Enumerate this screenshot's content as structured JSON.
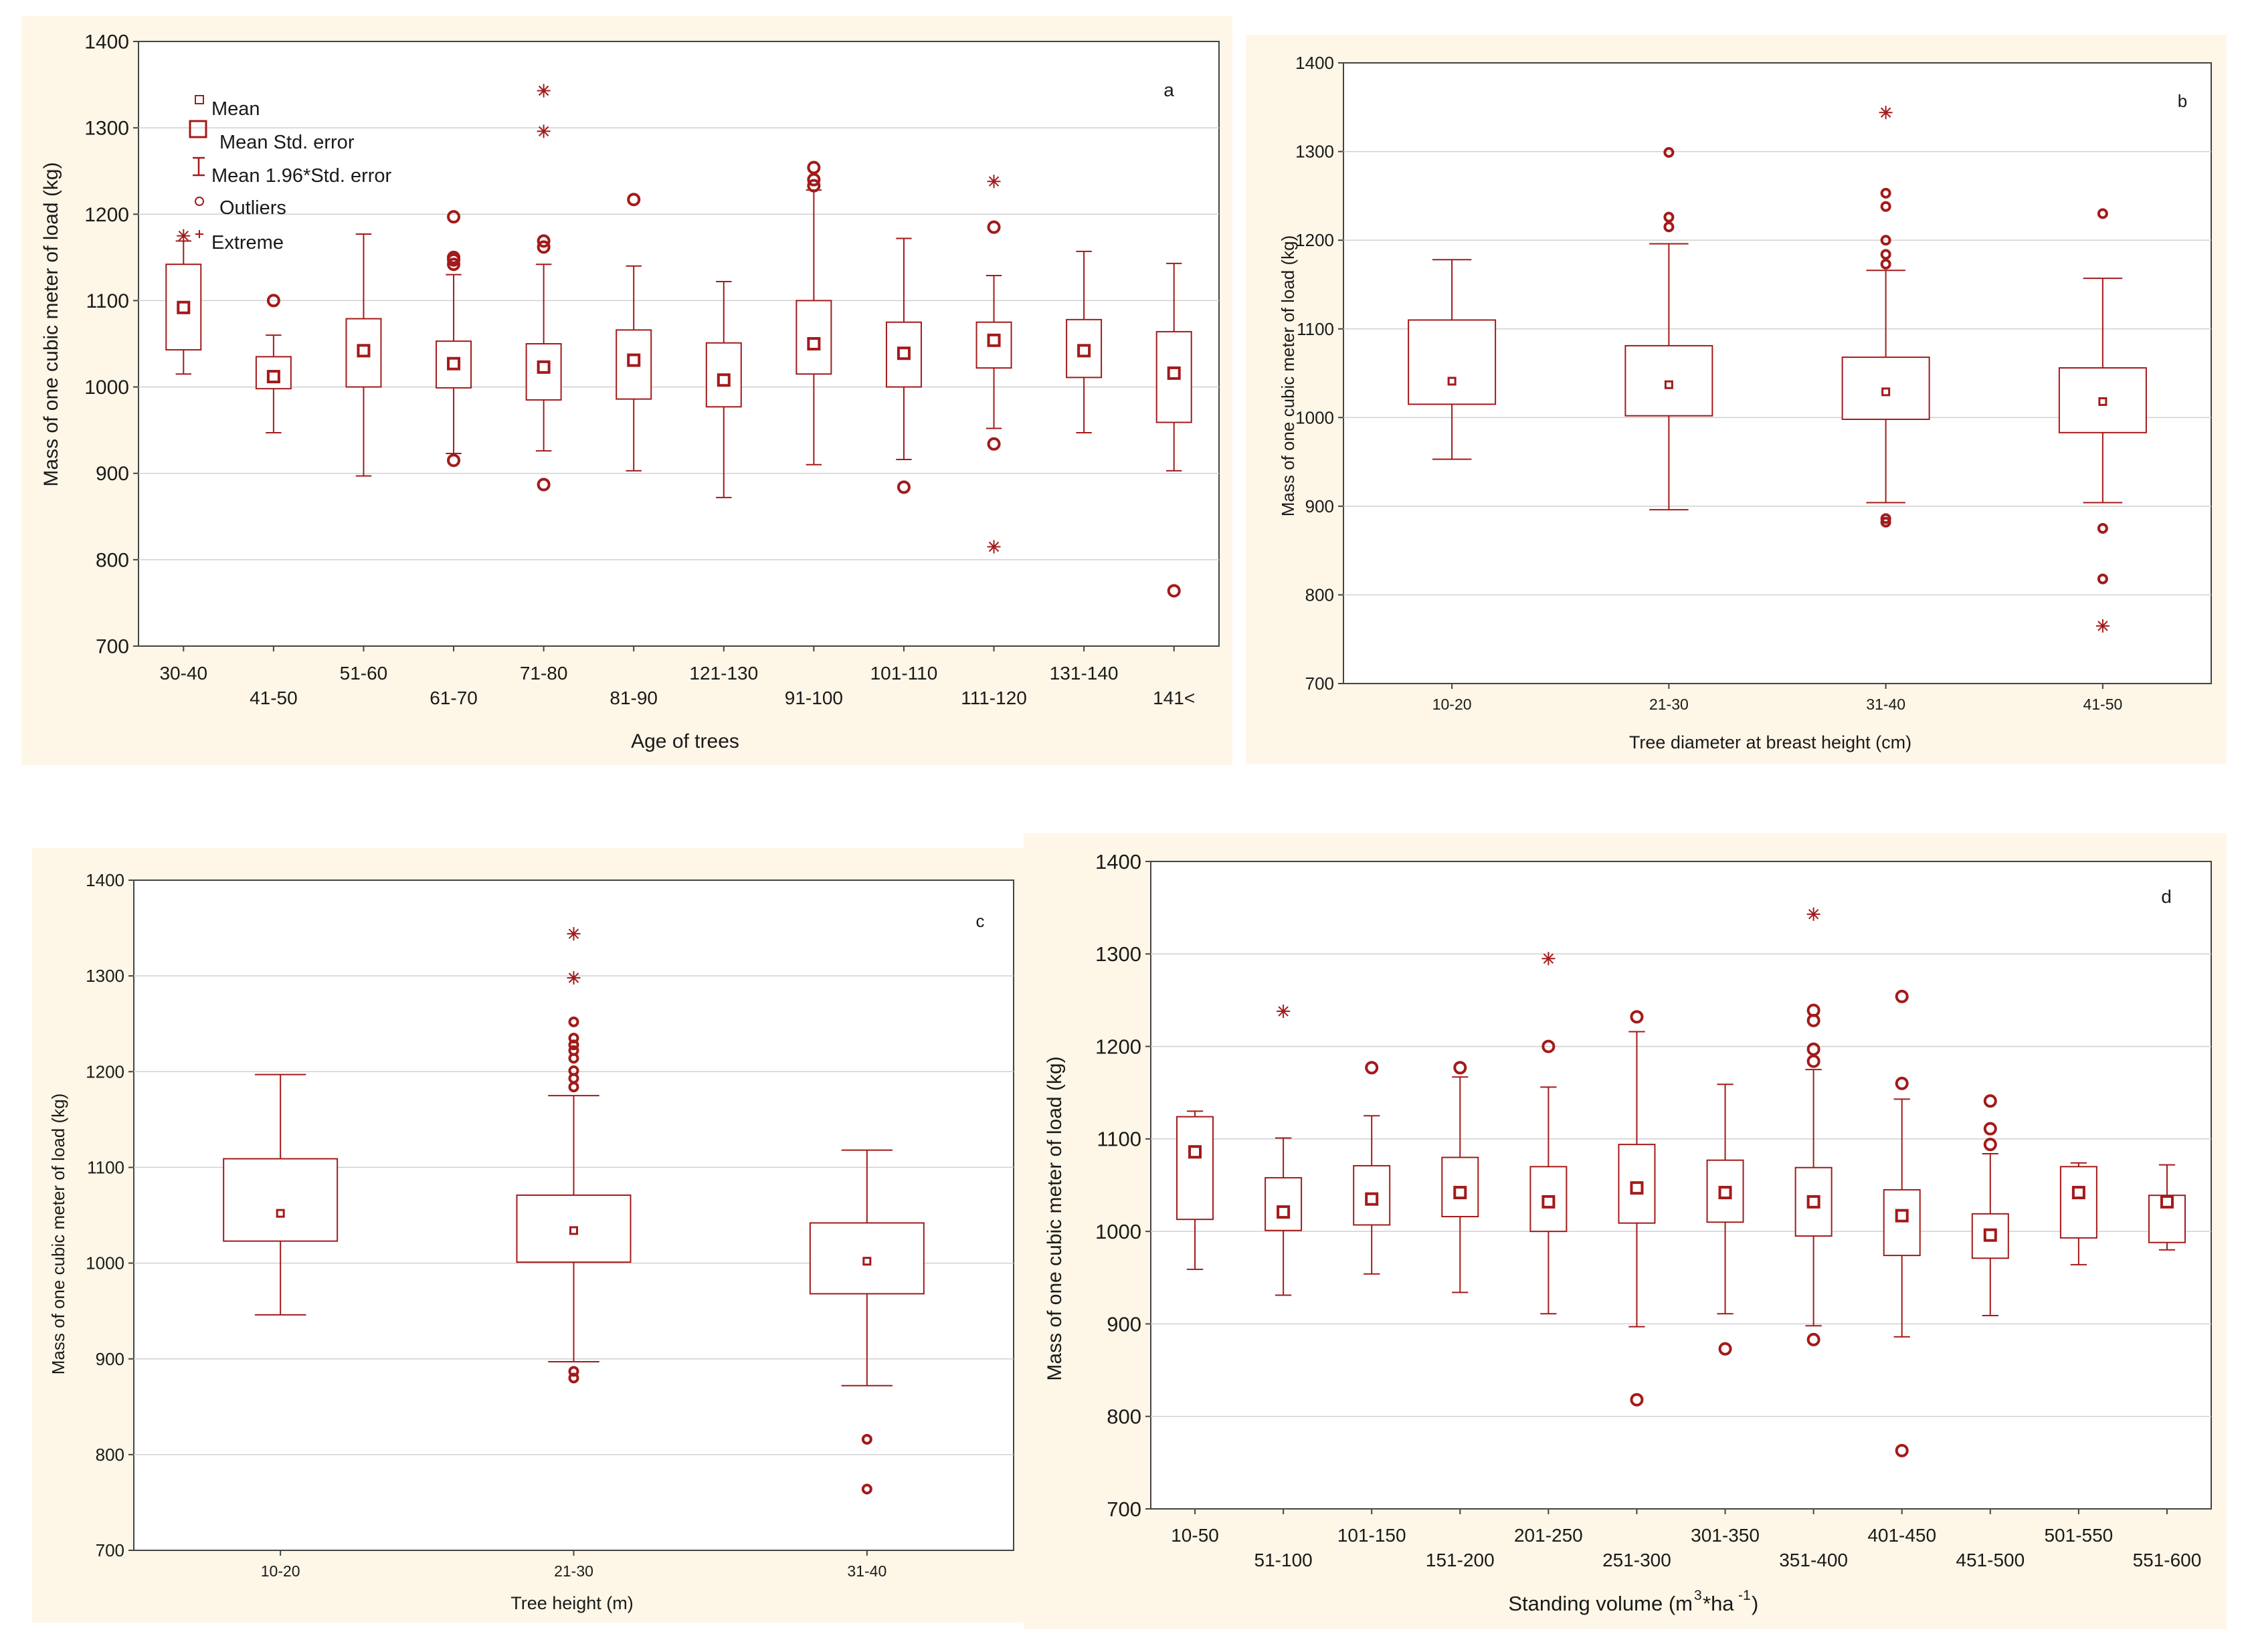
{
  "colors": {
    "series": "#A31A1A",
    "panel_bg": "#FEF6E7",
    "grid": "#D0D0D0",
    "axis": "#333333"
  },
  "legend": {
    "mean": "Mean",
    "mean_se": "Mean Std. error",
    "mean_196se": "Mean 1.96*Std. error",
    "outliers": "Outliers",
    "extreme": "Extreme"
  },
  "chart_data": [
    {
      "type": "box",
      "panel": "a",
      "title": "",
      "xlabel": "Age of trees",
      "ylabel": "Mass of one cubic meter of load (kg)",
      "ylim": [
        700,
        1400
      ],
      "yticks": [
        700,
        800,
        900,
        1000,
        1100,
        1200,
        1300,
        1400
      ],
      "categories": [
        "30-40",
        "41-50",
        "51-60",
        "61-70",
        "71-80",
        "81-90",
        "121-130",
        "91-100",
        "101-110",
        "111-120",
        "131-140",
        "141<"
      ],
      "boxes": [
        {
          "mean": 1092,
          "box": [
            1043,
            1142
          ],
          "whisker": [
            1015,
            1169
          ],
          "outliers": [],
          "extremes": [
            1175
          ]
        },
        {
          "mean": 1012,
          "box": [
            998,
            1035
          ],
          "whisker": [
            947,
            1060
          ],
          "outliers": [
            1100
          ],
          "extremes": []
        },
        {
          "mean": 1042,
          "box": [
            1000,
            1079
          ],
          "whisker": [
            897,
            1177
          ],
          "outliers": [],
          "extremes": []
        },
        {
          "mean": 1027,
          "box": [
            999,
            1053
          ],
          "whisker": [
            923,
            1130
          ],
          "outliers": [
            915,
            1142,
            1147,
            1150,
            1197
          ],
          "extremes": []
        },
        {
          "mean": 1023,
          "box": [
            985,
            1050
          ],
          "whisker": [
            926,
            1142
          ],
          "outliers": [
            887,
            1162,
            1169
          ],
          "extremes": [
            1296,
            1343
          ]
        },
        {
          "mean": 1031,
          "box": [
            986,
            1066
          ],
          "whisker": [
            903,
            1140
          ],
          "outliers": [
            1217
          ],
          "extremes": []
        },
        {
          "mean": 1008,
          "box": [
            977,
            1051
          ],
          "whisker": [
            872,
            1122
          ],
          "outliers": [],
          "extremes": []
        },
        {
          "mean": 1050,
          "box": [
            1015,
            1100
          ],
          "whisker": [
            910,
            1228
          ],
          "outliers": [
            1233,
            1240,
            1254
          ],
          "extremes": []
        },
        {
          "mean": 1039,
          "box": [
            1000,
            1075
          ],
          "whisker": [
            916,
            1172
          ],
          "outliers": [
            884
          ],
          "extremes": []
        },
        {
          "mean": 1054,
          "box": [
            1022,
            1075
          ],
          "whisker": [
            952,
            1129
          ],
          "outliers": [
            934,
            1185
          ],
          "extremes": [
            815,
            1238
          ]
        },
        {
          "mean": 1042,
          "box": [
            1011,
            1078
          ],
          "whisker": [
            947,
            1157
          ],
          "outliers": [],
          "extremes": []
        },
        {
          "mean": 1016,
          "box": [
            959,
            1064
          ],
          "whisker": [
            903,
            1143
          ],
          "outliers": [
            764
          ],
          "extremes": []
        }
      ],
      "corner_label": "a",
      "legend_position": "top-left"
    },
    {
      "type": "box",
      "panel": "b",
      "title": "",
      "xlabel": "Tree diameter at breast height (cm)",
      "ylabel": "Mass of one cubic meter of load (kg)",
      "ylim": [
        700,
        1400
      ],
      "yticks": [
        700,
        800,
        900,
        1000,
        1100,
        1200,
        1300,
        1400
      ],
      "categories": [
        "10-20",
        "21-30",
        "31-40",
        "41-50"
      ],
      "boxes": [
        {
          "mean": 1041,
          "box": [
            1015,
            1110
          ],
          "whisker": [
            953,
            1178
          ],
          "outliers": [],
          "extremes": []
        },
        {
          "mean": 1037,
          "box": [
            1002,
            1081
          ],
          "whisker": [
            896,
            1196
          ],
          "outliers": [
            1215,
            1226,
            1299
          ],
          "extremes": []
        },
        {
          "mean": 1029,
          "box": [
            998,
            1068
          ],
          "whisker": [
            904,
            1166
          ],
          "outliers": [
            882,
            886,
            1173,
            1184,
            1200,
            1238,
            1253
          ],
          "extremes": [
            1344
          ]
        },
        {
          "mean": 1018,
          "box": [
            983,
            1056
          ],
          "whisker": [
            904,
            1157
          ],
          "outliers": [
            818,
            875,
            1230
          ],
          "extremes": [
            765
          ]
        }
      ],
      "corner_label": "b"
    },
    {
      "type": "box",
      "panel": "c",
      "title": "",
      "xlabel": "Tree height (m)",
      "ylabel": "Mass of one cubic meter of load (kg)",
      "ylim": [
        700,
        1400
      ],
      "yticks": [
        700,
        800,
        900,
        1000,
        1100,
        1200,
        1300,
        1400
      ],
      "categories": [
        "10-20",
        "21-30",
        "31-40"
      ],
      "boxes": [
        {
          "mean": 1052,
          "box": [
            1023,
            1109
          ],
          "whisker": [
            946,
            1197
          ],
          "outliers": [],
          "extremes": []
        },
        {
          "mean": 1034,
          "box": [
            1001,
            1071
          ],
          "whisker": [
            897,
            1175
          ],
          "outliers": [
            880,
            887,
            1184,
            1193,
            1201,
            1214,
            1222,
            1228,
            1235,
            1252
          ],
          "extremes": [
            1298,
            1344
          ]
        },
        {
          "mean": 1002,
          "box": [
            968,
            1042
          ],
          "whisker": [
            872,
            1118
          ],
          "outliers": [
            764,
            816
          ],
          "extremes": []
        }
      ],
      "corner_label": "c"
    },
    {
      "type": "box",
      "panel": "d",
      "title": "",
      "xlabel": "Standing volume (m",
      "xlabel_sup1": "3",
      "xlabel_mid": "*ha",
      "xlabel_sup2": "-1",
      "xlabel_end": ")",
      "ylabel": "Mass of one cubic meter of load (kg)",
      "ylim": [
        700,
        1400
      ],
      "yticks": [
        700,
        800,
        900,
        1000,
        1100,
        1200,
        1300,
        1400
      ],
      "categories": [
        "10-50",
        "51-100",
        "101-150",
        "151-200",
        "201-250",
        "251-300",
        "301-350",
        "351-400",
        "401-450",
        "451-500",
        "501-550",
        "551-600"
      ],
      "boxes": [
        {
          "mean": 1086,
          "box": [
            1013,
            1124
          ],
          "whisker": [
            959,
            1130
          ],
          "outliers": [],
          "extremes": []
        },
        {
          "mean": 1021,
          "box": [
            1001,
            1058
          ],
          "whisker": [
            931,
            1101
          ],
          "outliers": [],
          "extremes": [
            1238
          ]
        },
        {
          "mean": 1035,
          "box": [
            1007,
            1071
          ],
          "whisker": [
            954,
            1125
          ],
          "outliers": [
            1177
          ],
          "extremes": []
        },
        {
          "mean": 1042,
          "box": [
            1016,
            1080
          ],
          "whisker": [
            934,
            1167
          ],
          "outliers": [
            1177
          ],
          "extremes": []
        },
        {
          "mean": 1032,
          "box": [
            1000,
            1070
          ],
          "whisker": [
            911,
            1156
          ],
          "outliers": [
            1200
          ],
          "extremes": [
            1295
          ]
        },
        {
          "mean": 1047,
          "box": [
            1009,
            1094
          ],
          "whisker": [
            897,
            1216
          ],
          "outliers": [
            818,
            1232
          ],
          "extremes": []
        },
        {
          "mean": 1042,
          "box": [
            1010,
            1077
          ],
          "whisker": [
            911,
            1159
          ],
          "outliers": [
            873
          ],
          "extremes": []
        },
        {
          "mean": 1032,
          "box": [
            995,
            1069
          ],
          "whisker": [
            898,
            1175
          ],
          "outliers": [
            883,
            1184,
            1197,
            1228,
            1239
          ],
          "extremes": [
            1343
          ]
        },
        {
          "mean": 1017,
          "box": [
            974,
            1045
          ],
          "whisker": [
            886,
            1143
          ],
          "outliers": [
            763,
            1160,
            1254
          ],
          "extremes": []
        },
        {
          "mean": 996,
          "box": [
            971,
            1019
          ],
          "whisker": [
            909,
            1084
          ],
          "outliers": [
            1094,
            1111,
            1141
          ],
          "extremes": []
        },
        {
          "mean": 1042,
          "box": [
            993,
            1070
          ],
          "whisker": [
            964,
            1074
          ],
          "outliers": [],
          "extremes": []
        },
        {
          "mean": 1032,
          "box": [
            988,
            1039
          ],
          "whisker": [
            980,
            1072
          ],
          "outliers": [],
          "extremes": []
        }
      ],
      "corner_label": "d"
    }
  ]
}
